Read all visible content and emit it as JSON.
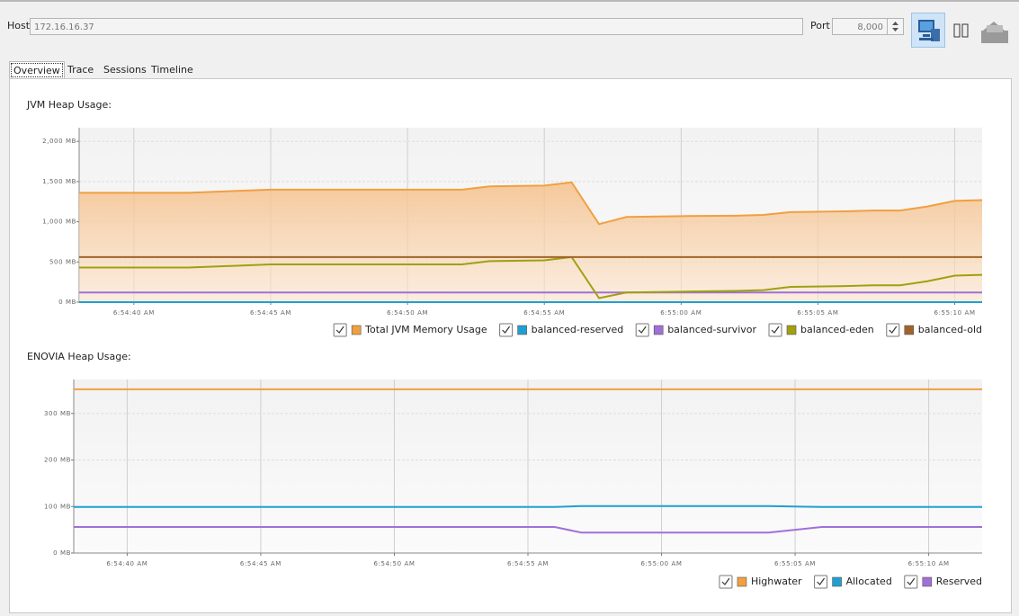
{
  "toolbar": {
    "host_label": "Host",
    "host": "172.16.16.37",
    "port_label": "Port",
    "port": "8,000"
  },
  "tabs": [
    "Overview",
    "Trace",
    "Sessions",
    "Timeline"
  ],
  "chart_data": [
    {
      "type": "line",
      "title": "JVM Heap Usage:",
      "grid": true,
      "x": [
        "6:54:38 AM",
        "6:54:42 AM",
        "6:54:45 AM",
        "6:54:52 AM",
        "6:54:53 AM",
        "6:54:55 AM",
        "6:54:56 AM",
        "6:54:57 AM",
        "6:54:58 AM",
        "6:55:00 AM",
        "6:55:02 AM",
        "6:55:03 AM",
        "6:55:04 AM",
        "6:55:06 AM",
        "6:55:07 AM",
        "6:55:08 AM",
        "6:55:09 AM",
        "6:55:10 AM",
        "6:55:11 AM"
      ],
      "xlim": [
        "6:54:38 AM",
        "6:55:11 AM"
      ],
      "xticks": [
        "6:54:40 AM",
        "6:54:45 AM",
        "6:54:50 AM",
        "6:54:55 AM",
        "6:55:00 AM",
        "6:55:05 AM",
        "6:55:10 AM"
      ],
      "ylim": [
        0,
        2170
      ],
      "yticks": [
        {
          "value": 0,
          "label": "0 MB"
        },
        {
          "value": 500,
          "label": "500 MB"
        },
        {
          "value": 1000,
          "label": "1,000 MB"
        },
        {
          "value": 1500,
          "label": "1,500 MB"
        },
        {
          "value": 2000,
          "label": "2,000 MB"
        }
      ],
      "series": [
        {
          "name": "Total JVM Memory Usage",
          "color": "#f0a040",
          "fill": true,
          "values": [
            1360,
            1360,
            1400,
            1400,
            1440,
            1450,
            1490,
            970,
            1060,
            1070,
            1075,
            1085,
            1120,
            1130,
            1140,
            1140,
            1190,
            1260,
            1270
          ]
        },
        {
          "name": "balanced-reserved",
          "color": "#20a0d0",
          "values": [
            0,
            0,
            0,
            0,
            0,
            0,
            0,
            0,
            0,
            0,
            0,
            0,
            0,
            0,
            0,
            0,
            0,
            0,
            0
          ]
        },
        {
          "name": "balanced-survivor",
          "color": "#a070d8",
          "values": [
            120,
            120,
            120,
            120,
            120,
            120,
            120,
            120,
            120,
            120,
            120,
            120,
            120,
            120,
            120,
            120,
            120,
            120,
            120
          ]
        },
        {
          "name": "balanced-eden",
          "color": "#a0a010",
          "values": [
            430,
            430,
            470,
            470,
            510,
            520,
            560,
            50,
            120,
            130,
            140,
            150,
            190,
            200,
            210,
            210,
            260,
            330,
            340
          ]
        },
        {
          "name": "balanced-old",
          "color": "#a0642a",
          "values": [
            560,
            560,
            560,
            560,
            560,
            560,
            560,
            560,
            560,
            560,
            560,
            560,
            560,
            560,
            560,
            560,
            560,
            560,
            560
          ]
        }
      ]
    },
    {
      "type": "line",
      "title": "ENOVIA Heap Usage:",
      "grid": true,
      "x": [
        "6:54:38 AM",
        "6:54:56 AM",
        "6:54:57 AM",
        "6:55:04 AM",
        "6:55:06 AM",
        "6:55:12 AM"
      ],
      "xlim": [
        "6:54:38 AM",
        "6:55:12 AM"
      ],
      "xticks": [
        "6:54:40 AM",
        "6:54:45 AM",
        "6:54:50 AM",
        "6:54:55 AM",
        "6:55:00 AM",
        "6:55:05 AM",
        "6:55:10 AM"
      ],
      "ylim": [
        0,
        373
      ],
      "yticks": [
        {
          "value": 0,
          "label": "0 MB"
        },
        {
          "value": 100,
          "label": "100 MB"
        },
        {
          "value": 200,
          "label": "200 MB"
        },
        {
          "value": 300,
          "label": "300 MB"
        }
      ],
      "series": [
        {
          "name": "Highwater",
          "color": "#f0a040",
          "values": [
            352,
            352,
            352,
            352,
            352,
            352
          ]
        },
        {
          "name": "Allocated",
          "color": "#20a0d0",
          "values": [
            99,
            99,
            101,
            101,
            99,
            99
          ]
        },
        {
          "name": "Reserved",
          "color": "#a070d8",
          "values": [
            56,
            56,
            44,
            44,
            56,
            56
          ]
        }
      ]
    }
  ]
}
